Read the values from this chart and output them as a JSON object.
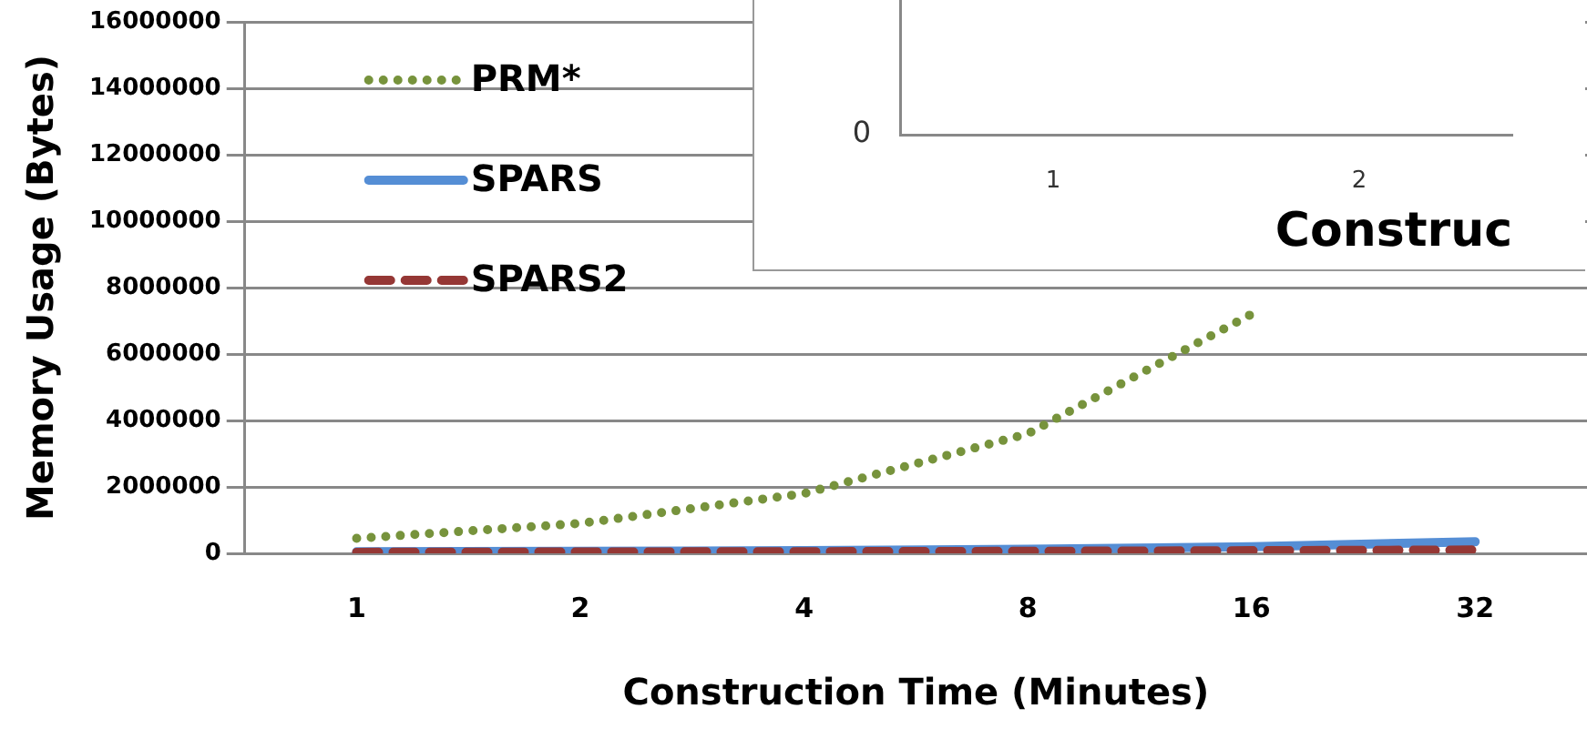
{
  "chart_data": [
    {
      "type": "line",
      "xlabel": "Construction Time (Minutes)",
      "ylabel": "Memory Usage (Bytes)",
      "categories": [
        "1",
        "2",
        "4",
        "8",
        "16",
        "32"
      ],
      "series": [
        {
          "name": "PRM*",
          "color": "#77933c",
          "line_style": "dotted",
          "values": [
            450000,
            900000,
            1800000,
            3600000,
            7200000,
            null
          ]
        },
        {
          "name": "SPARS",
          "color": "#558ed5",
          "line_style": "solid",
          "values": [
            50000,
            60000,
            80000,
            120000,
            200000,
            350000
          ]
        },
        {
          "name": "SPARS2",
          "color": "#953735",
          "line_style": "dashed",
          "values": [
            30000,
            40000,
            50000,
            60000,
            80000,
            100000
          ]
        }
      ],
      "ylim": [
        0,
        16000000
      ],
      "yticks": [
        0,
        2000000,
        4000000,
        6000000,
        8000000,
        10000000,
        12000000,
        14000000,
        16000000
      ],
      "grid": "y",
      "legend": "top left",
      "marker": "none"
    },
    {
      "type": "other",
      "xlabel": "Construc",
      "categories": [
        "1",
        "2"
      ],
      "annotations": [
        "0"
      ]
    }
  ]
}
